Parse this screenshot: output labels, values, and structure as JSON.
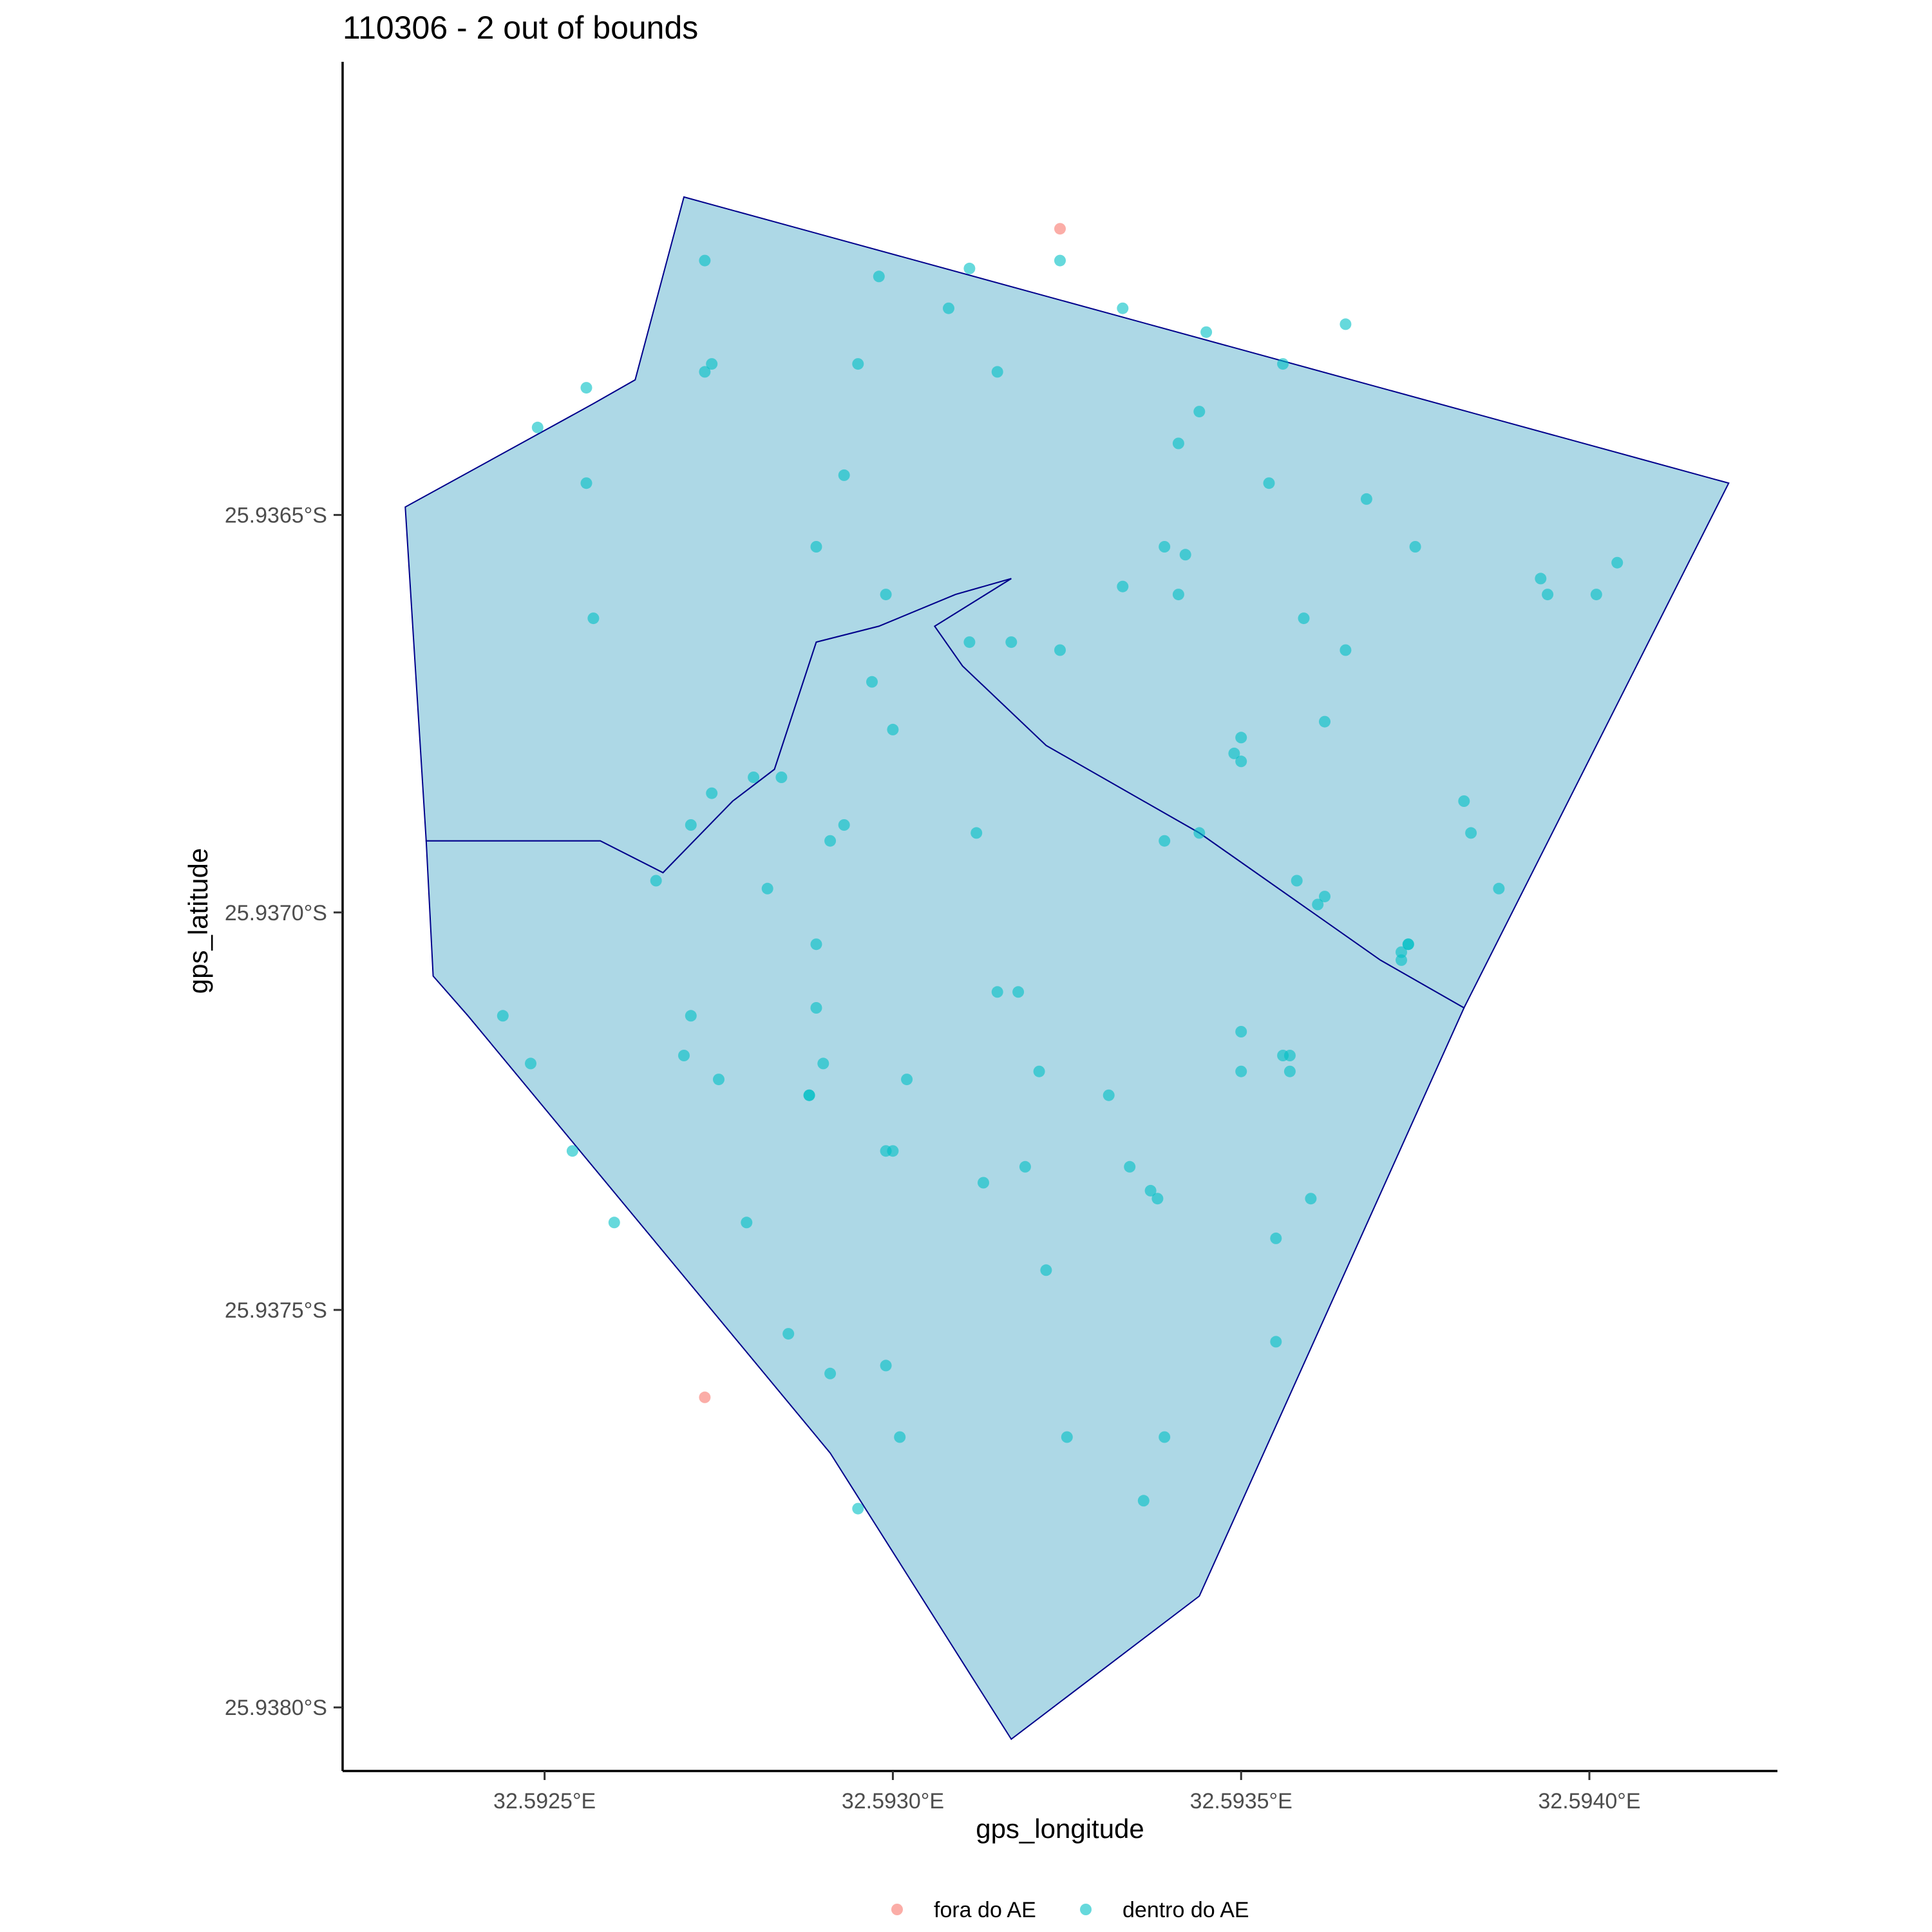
{
  "chart_data": {
    "type": "scatter",
    "title": "110306 - 2 out of bounds",
    "xlabel": "gps_longitude",
    "ylabel": "gps_latitude",
    "xlim": [
      32.59221,
      32.59427
    ],
    "ylim": [
      -25.93808,
      -25.93593
    ],
    "x_ticks": [
      {
        "value": 32.5925,
        "label": "32.5925°E"
      },
      {
        "value": 32.593,
        "label": "32.5930°E"
      },
      {
        "value": 32.5935,
        "label": "32.5935°E"
      },
      {
        "value": 32.594,
        "label": "32.5940°E"
      }
    ],
    "y_ticks": [
      {
        "value": -25.9365,
        "label": "25.9365°S"
      },
      {
        "value": -25.937,
        "label": "25.9370°S"
      },
      {
        "value": -25.9375,
        "label": "25.9375°S"
      },
      {
        "value": -25.938,
        "label": "25.9380°S"
      }
    ],
    "grid": false,
    "legend_position": "bottom",
    "polygons": [
      {
        "fill": "#add8e6",
        "stroke": "#00008b",
        "points": [
          [
            32.5927,
            -25.9361
          ],
          [
            32.5942,
            -25.93646
          ],
          [
            32.59382,
            -25.93712
          ],
          [
            32.5937,
            -25.93706
          ],
          [
            32.59344,
            -25.9369
          ],
          [
            32.59322,
            -25.93679
          ],
          [
            32.5931,
            -25.93669
          ],
          [
            32.59306,
            -25.93664
          ],
          [
            32.59317,
            -25.93658
          ],
          [
            32.59309,
            -25.9366
          ],
          [
            32.59298,
            -25.93664
          ],
          [
            32.59289,
            -25.93666
          ],
          [
            32.59283,
            -25.93682
          ],
          [
            32.59277,
            -25.93686
          ],
          [
            32.59267,
            -25.93695
          ],
          [
            32.59258,
            -25.93691
          ],
          [
            32.59233,
            -25.93691
          ],
          [
            32.5923,
            -25.93649
          ],
          [
            32.59257,
            -25.93636
          ],
          [
            32.59263,
            -25.93633
          ]
        ]
      },
      {
        "fill": "#add8e6",
        "stroke": "#00008b",
        "points": [
          [
            32.59283,
            -25.93682
          ],
          [
            32.59289,
            -25.93666
          ],
          [
            32.59298,
            -25.93664
          ],
          [
            32.59309,
            -25.9366
          ],
          [
            32.59317,
            -25.93658
          ],
          [
            32.59306,
            -25.93664
          ],
          [
            32.5931,
            -25.93669
          ],
          [
            32.59322,
            -25.93679
          ],
          [
            32.59344,
            -25.9369
          ],
          [
            32.5937,
            -25.93706
          ],
          [
            32.59382,
            -25.93712
          ],
          [
            32.59344,
            -25.93786
          ],
          [
            32.59317,
            -25.93804
          ],
          [
            32.59291,
            -25.93768
          ],
          [
            32.59239,
            -25.93713
          ],
          [
            32.59234,
            -25.93708
          ],
          [
            32.59233,
            -25.93691
          ],
          [
            32.59258,
            -25.93691
          ],
          [
            32.59267,
            -25.93695
          ],
          [
            32.59277,
            -25.93686
          ]
        ]
      }
    ],
    "series": [
      {
        "name": "fora do AE",
        "color": "#f8766d",
        "points": [
          [
            32.59324,
            -25.93614
          ],
          [
            32.59273,
            -25.93761
          ]
        ]
      },
      {
        "name": "dentro do AE",
        "color": "#00bfc4",
        "points": [
          [
            32.59273,
            -25.93618
          ],
          [
            32.59298,
            -25.9362
          ],
          [
            32.59311,
            -25.93619
          ],
          [
            32.59324,
            -25.93618
          ],
          [
            32.59308,
            -25.93624
          ],
          [
            32.59333,
            -25.93624
          ],
          [
            32.59345,
            -25.93627
          ],
          [
            32.59256,
            -25.93634
          ],
          [
            32.59274,
            -25.93631
          ],
          [
            32.59273,
            -25.93632
          ],
          [
            32.59295,
            -25.93631
          ],
          [
            32.59315,
            -25.93632
          ],
          [
            32.59356,
            -25.93631
          ],
          [
            32.59365,
            -25.93626
          ],
          [
            32.59249,
            -25.93639
          ],
          [
            32.59344,
            -25.93637
          ],
          [
            32.59341,
            -25.93641
          ],
          [
            32.59256,
            -25.93646
          ],
          [
            32.59293,
            -25.93645
          ],
          [
            32.59354,
            -25.93646
          ],
          [
            32.59368,
            -25.93648
          ],
          [
            32.59289,
            -25.93654
          ],
          [
            32.59339,
            -25.93654
          ],
          [
            32.59342,
            -25.93655
          ],
          [
            32.59375,
            -25.93654
          ],
          [
            32.59257,
            -25.93663
          ],
          [
            32.59299,
            -25.9366
          ],
          [
            32.59333,
            -25.93659
          ],
          [
            32.59341,
            -25.9366
          ],
          [
            32.59393,
            -25.93658
          ],
          [
            32.59394,
            -25.9366
          ],
          [
            32.59401,
            -25.9366
          ],
          [
            32.59404,
            -25.93656
          ],
          [
            32.59359,
            -25.93663
          ],
          [
            32.59311,
            -25.93666
          ],
          [
            32.59317,
            -25.93666
          ],
          [
            32.59324,
            -25.93667
          ],
          [
            32.59365,
            -25.93667
          ],
          [
            32.59297,
            -25.93671
          ],
          [
            32.593,
            -25.93677
          ],
          [
            32.59362,
            -25.93676
          ],
          [
            32.5935,
            -25.93678
          ],
          [
            32.59349,
            -25.9368
          ],
          [
            32.5935,
            -25.93681
          ],
          [
            32.5928,
            -25.93683
          ],
          [
            32.59284,
            -25.93683
          ],
          [
            32.59274,
            -25.93685
          ],
          [
            32.59382,
            -25.93686
          ],
          [
            32.59383,
            -25.9369
          ],
          [
            32.59271,
            -25.93689
          ],
          [
            32.59293,
            -25.93689
          ],
          [
            32.59291,
            -25.93691
          ],
          [
            32.59312,
            -25.9369
          ],
          [
            32.59339,
            -25.93691
          ],
          [
            32.59344,
            -25.9369
          ],
          [
            32.59266,
            -25.93696
          ],
          [
            32.59282,
            -25.93697
          ],
          [
            32.59358,
            -25.93696
          ],
          [
            32.59362,
            -25.93698
          ],
          [
            32.59361,
            -25.93699
          ],
          [
            32.59387,
            -25.93697
          ],
          [
            32.59374,
            -25.93704
          ],
          [
            32.59374,
            -25.93704
          ],
          [
            32.59373,
            -25.93705
          ],
          [
            32.59373,
            -25.93706
          ],
          [
            32.59289,
            -25.93704
          ],
          [
            32.59315,
            -25.9371
          ],
          [
            32.59318,
            -25.9371
          ],
          [
            32.59244,
            -25.93713
          ],
          [
            32.59271,
            -25.93713
          ],
          [
            32.59289,
            -25.93712
          ],
          [
            32.5935,
            -25.93715
          ],
          [
            32.59248,
            -25.93719
          ],
          [
            32.5927,
            -25.93718
          ],
          [
            32.5929,
            -25.93719
          ],
          [
            32.59356,
            -25.93718
          ],
          [
            32.59357,
            -25.93718
          ],
          [
            32.59357,
            -25.9372
          ],
          [
            32.59275,
            -25.93721
          ],
          [
            32.59302,
            -25.93721
          ],
          [
            32.59321,
            -25.9372
          ],
          [
            32.5935,
            -25.9372
          ],
          [
            32.59288,
            -25.93723
          ],
          [
            32.59288,
            -25.93723
          ],
          [
            32.59331,
            -25.93723
          ],
          [
            32.59254,
            -25.9373
          ],
          [
            32.59299,
            -25.9373
          ],
          [
            32.593,
            -25.9373
          ],
          [
            32.59319,
            -25.93732
          ],
          [
            32.59334,
            -25.93732
          ],
          [
            32.59313,
            -25.93734
          ],
          [
            32.59337,
            -25.93735
          ],
          [
            32.59338,
            -25.93736
          ],
          [
            32.5936,
            -25.93736
          ],
          [
            32.5926,
            -25.93739
          ],
          [
            32.59279,
            -25.93739
          ],
          [
            32.59355,
            -25.93741
          ],
          [
            32.59322,
            -25.93745
          ],
          [
            32.59285,
            -25.93753
          ],
          [
            32.59291,
            -25.93758
          ],
          [
            32.59299,
            -25.93757
          ],
          [
            32.59355,
            -25.93754
          ],
          [
            32.59301,
            -25.93766
          ],
          [
            32.59325,
            -25.93766
          ],
          [
            32.59339,
            -25.93766
          ],
          [
            32.59336,
            -25.93774
          ],
          [
            32.59295,
            -25.93775
          ]
        ]
      }
    ]
  }
}
